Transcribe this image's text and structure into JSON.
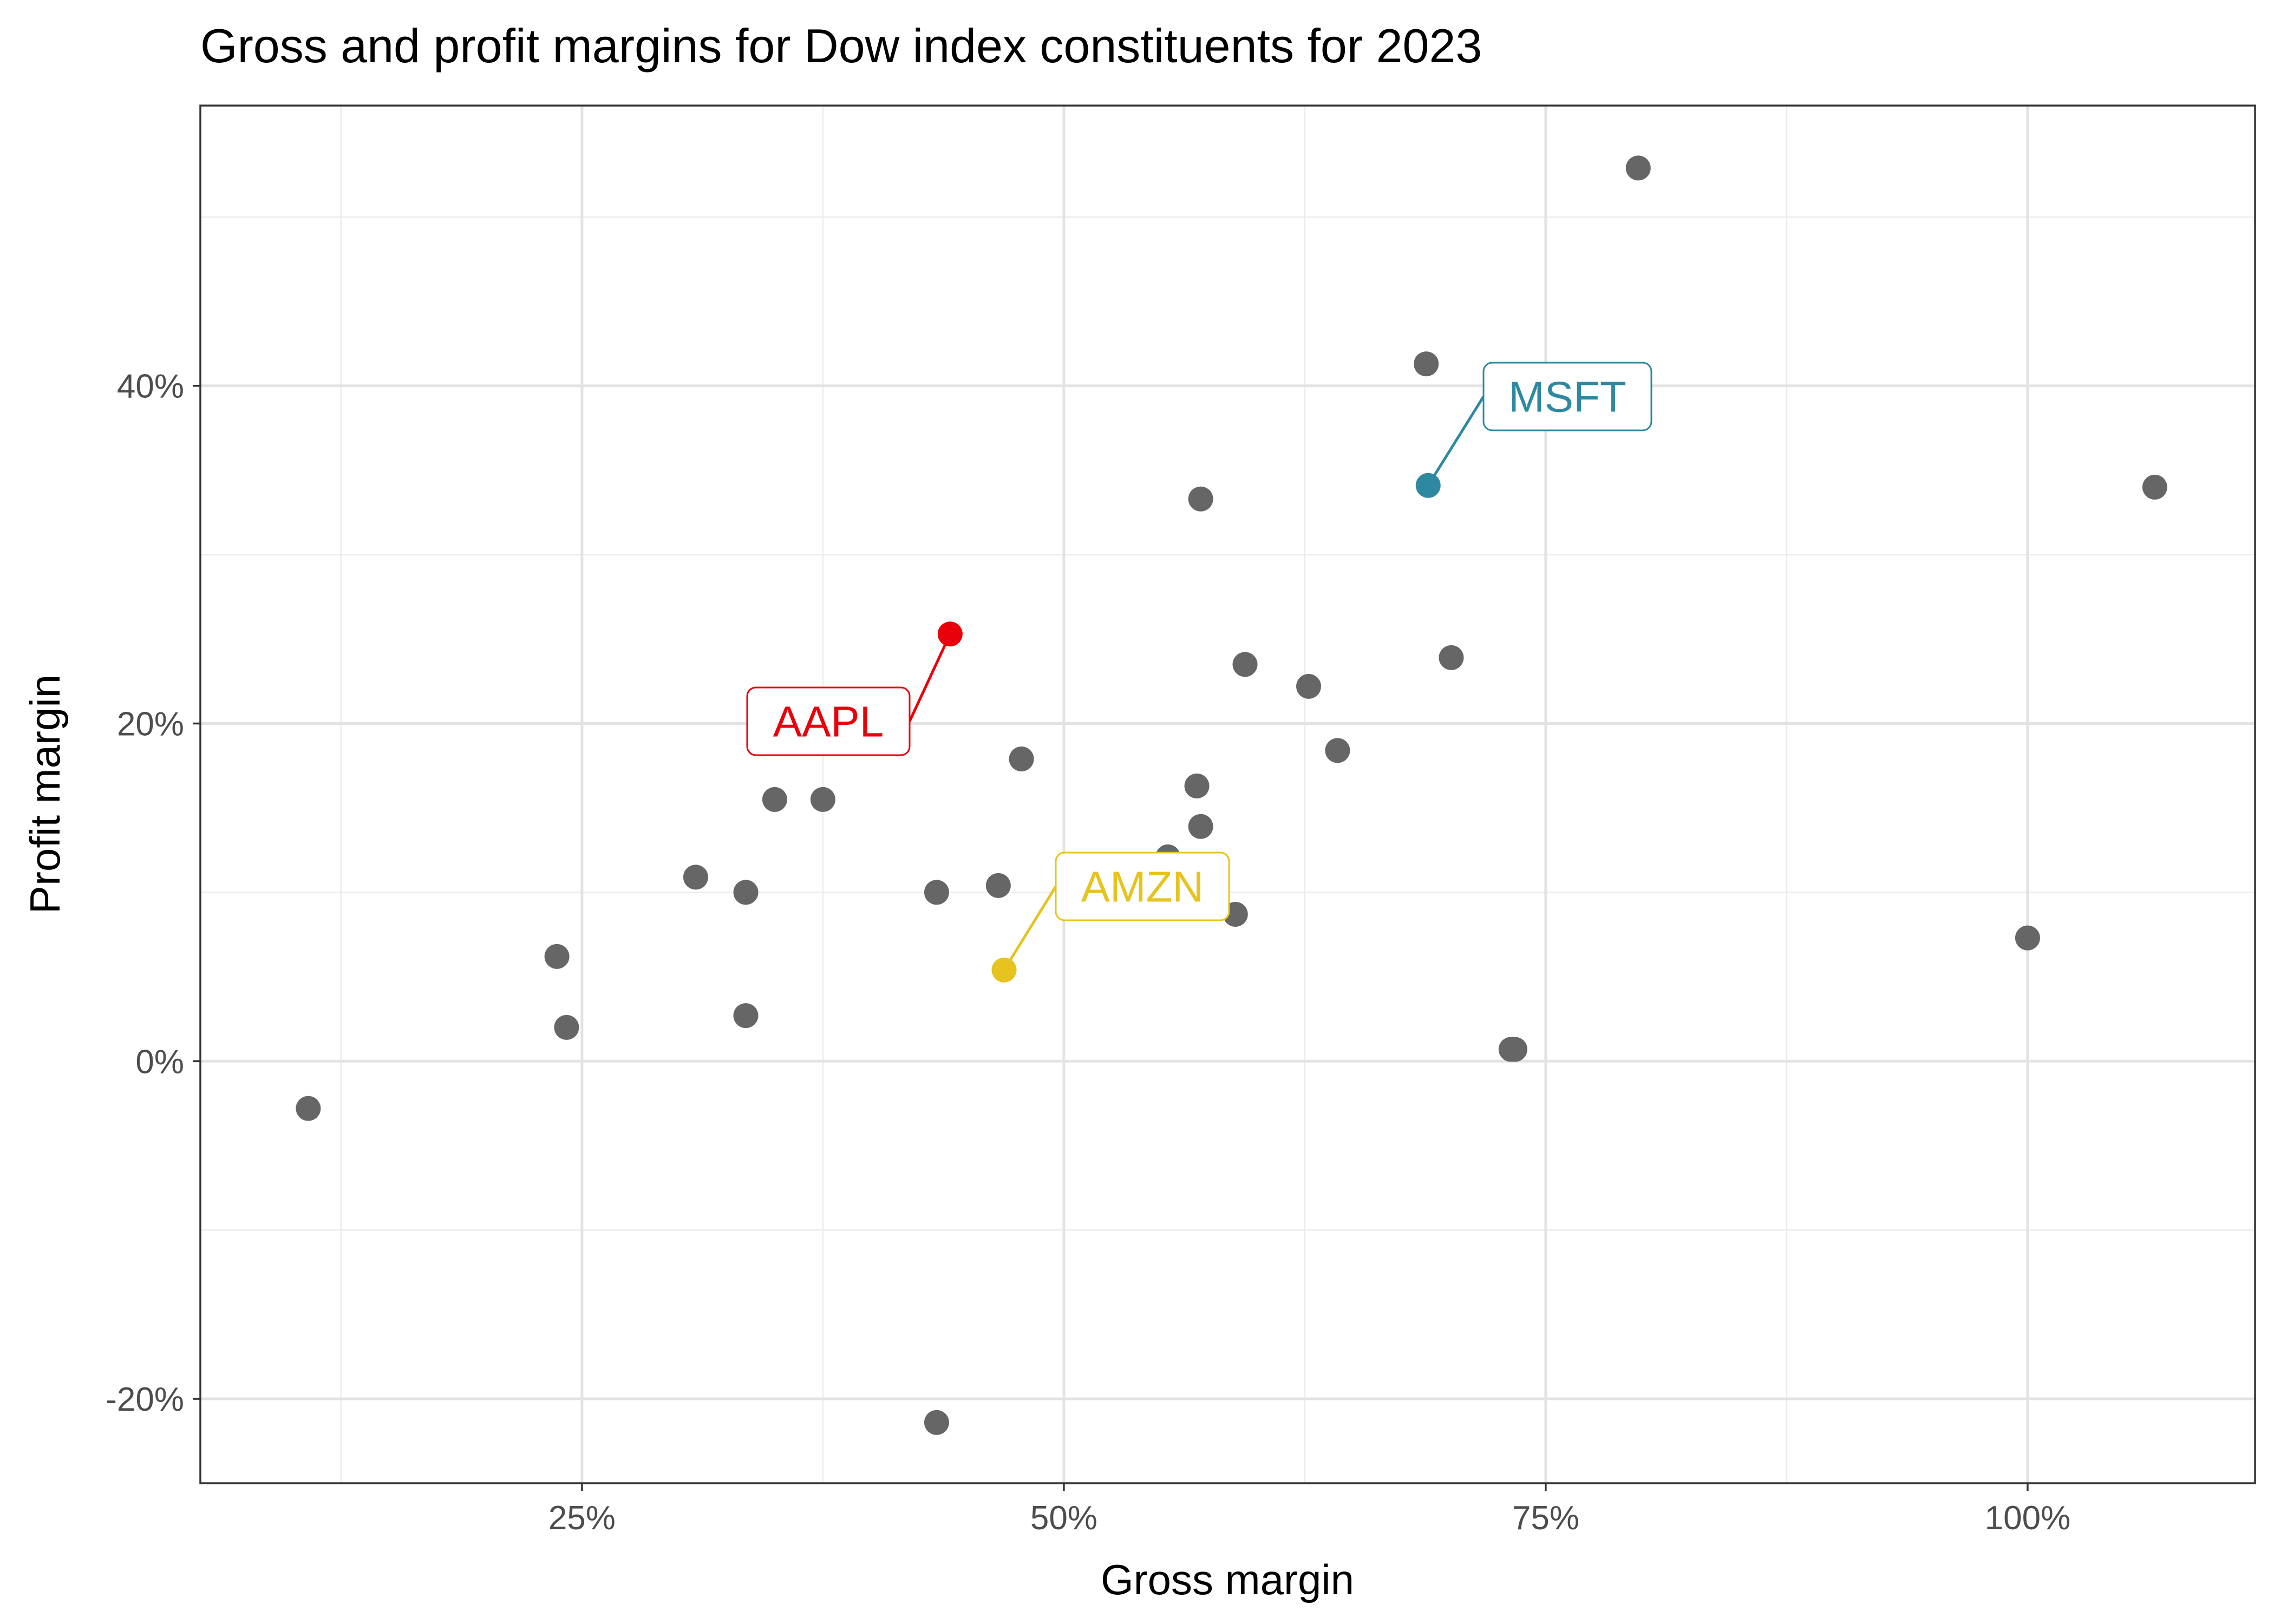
{
  "chart_data": {
    "type": "scatter",
    "title": "Gross and profit margins for Dow index constituents for 2023",
    "xlabel": "Gross margin",
    "ylabel": "Profit margin",
    "xlim": [
      5.2,
      111.8
    ],
    "ylim": [
      -25.0,
      56.6
    ],
    "x_major_ticks": [
      25,
      50,
      75,
      100
    ],
    "x_tick_labels": [
      "25%",
      "50%",
      "75%",
      "100%"
    ],
    "x_minor_ticks": [
      12.5,
      37.5,
      62.5,
      87.5
    ],
    "y_major_ticks": [
      -20,
      0,
      20,
      40
    ],
    "y_tick_labels": [
      "-20%",
      "0%",
      "20%",
      "40%"
    ],
    "y_minor_ticks": [
      -10,
      10,
      30,
      50
    ],
    "grid": true,
    "legend": "none",
    "point_color": "#666666",
    "points": [
      {
        "x": 10.8,
        "y": -2.8
      },
      {
        "x": 23.7,
        "y": 6.2
      },
      {
        "x": 24.2,
        "y": 2.0
      },
      {
        "x": 30.9,
        "y": 10.9
      },
      {
        "x": 33.5,
        "y": 10.0
      },
      {
        "x": 33.5,
        "y": 2.7
      },
      {
        "x": 35.0,
        "y": 15.5
      },
      {
        "x": 37.5,
        "y": 15.5
      },
      {
        "x": 43.4,
        "y": 10.0
      },
      {
        "x": 43.4,
        "y": -21.4
      },
      {
        "x": 46.6,
        "y": 10.4
      },
      {
        "x": 47.8,
        "y": 17.9
      },
      {
        "x": 55.4,
        "y": 12.1
      },
      {
        "x": 56.9,
        "y": 16.3
      },
      {
        "x": 57.1,
        "y": 13.9
      },
      {
        "x": 57.1,
        "y": 33.3
      },
      {
        "x": 58.9,
        "y": 8.7
      },
      {
        "x": 59.4,
        "y": 23.5
      },
      {
        "x": 62.7,
        "y": 22.2
      },
      {
        "x": 64.2,
        "y": 18.4
      },
      {
        "x": 68.8,
        "y": 41.3
      },
      {
        "x": 70.1,
        "y": 23.9
      },
      {
        "x": 73.2,
        "y": 0.7
      },
      {
        "x": 73.4,
        "y": 0.7
      },
      {
        "x": 79.8,
        "y": 52.9
      },
      {
        "x": 100.0,
        "y": 7.3
      },
      {
        "x": 106.6,
        "y": 34.0
      }
    ],
    "highlighted": [
      {
        "name": "AAPL",
        "x": 44.1,
        "y": 25.3,
        "color": "#e8000b"
      },
      {
        "name": "MSFT",
        "x": 68.9,
        "y": 34.1,
        "color": "#2e89a0"
      },
      {
        "name": "AMZN",
        "x": 46.9,
        "y": 5.4,
        "color": "#e6c31e"
      }
    ]
  }
}
